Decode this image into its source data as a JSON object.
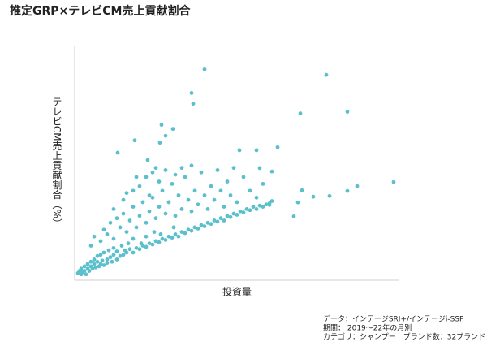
{
  "chart_data": {
    "type": "scatter",
    "title": "推定GRP×テレビCM売上貢献割合",
    "x_label": "投資量",
    "y_label": "テレビCM売上貢献割合（%）",
    "notes": [
      "データ：インテージSRI+/インテージi-SSP",
      "期間： 2019～22年の月別",
      "カテゴリ：シャンプー　ブランド数：32ブランド"
    ],
    "color": "#5bc0cc",
    "xlim": [
      0,
      100
    ],
    "ylim": [
      0,
      100
    ],
    "x": [
      40,
      77.5,
      36,
      36.5,
      69.5,
      84,
      26.75,
      30.25,
      28,
      26.25,
      13.25,
      18.5,
      22.5,
      50.75,
      56,
      62.5,
      98.25,
      87,
      84,
      78.5,
      73.5,
      70,
      67.5,
      68.75,
      60.75,
      57,
      60,
      1,
      1.5,
      2,
      2,
      2.5,
      3,
      3,
      3.5,
      4,
      4,
      4.5,
      5,
      5,
      5.5,
      6,
      6,
      6.5,
      7,
      7,
      7.5,
      8,
      8,
      8.5,
      9,
      9,
      10,
      10,
      10.5,
      11,
      11.5,
      12,
      12,
      13,
      13,
      14,
      14.5,
      15,
      15.5,
      16,
      16.5,
      17,
      18,
      18,
      19,
      20,
      20.5,
      21,
      22,
      22,
      23,
      24,
      24.5,
      25,
      26,
      26.5,
      27,
      28,
      29,
      30,
      30.5,
      31,
      32,
      33,
      34,
      35,
      36,
      37,
      38,
      39,
      40,
      41,
      42,
      43,
      44,
      45,
      46,
      47,
      48,
      49,
      50,
      51,
      52,
      53,
      54,
      55,
      56,
      57,
      58,
      59,
      60,
      60.75,
      5,
      6,
      8,
      9,
      10,
      11,
      12,
      13,
      14,
      15,
      16,
      17,
      18,
      19,
      20,
      21,
      22,
      23,
      24,
      25,
      26,
      27,
      28,
      29,
      30,
      31,
      32,
      33,
      34,
      35,
      36,
      37,
      38,
      39,
      40,
      41,
      42,
      43,
      44,
      45,
      46,
      47,
      48,
      49,
      50,
      52,
      54,
      56,
      58,
      20,
      22,
      25,
      18,
      15,
      23,
      28,
      33,
      36,
      31,
      26,
      12,
      16,
      19,
      24
    ],
    "values": [
      91,
      88.6,
      80.7,
      76,
      71.8,
      72.5,
      66.8,
      65,
      62,
      59,
      54.6,
      60,
      51.4,
      55.7,
      55.7,
      57,
      41.8,
      40,
      37.9,
      35.7,
      35.4,
      38.2,
      26.8,
      32.9,
      46.4,
      47.9,
      31.8,
      2,
      3,
      1.5,
      4,
      2.5,
      3,
      5,
      1.5,
      4,
      6,
      3,
      5,
      7,
      4,
      6,
      8,
      4.5,
      7,
      9.5,
      5,
      6,
      10,
      7.5,
      5.5,
      11,
      6.5,
      8,
      12,
      9,
      7,
      10,
      13,
      8,
      11.5,
      9.5,
      14,
      10,
      12,
      11,
      15,
      12.5,
      11,
      17,
      13,
      12.5,
      15,
      14,
      13.5,
      18,
      15,
      14.5,
      20,
      16,
      15.5,
      19,
      17,
      16.5,
      18,
      17.5,
      22,
      19,
      18,
      20,
      19.5,
      21,
      20.5,
      22,
      21.5,
      23,
      22.5,
      24,
      23.5,
      25,
      24.5,
      26,
      25,
      27,
      26.5,
      28,
      27.5,
      29,
      28.5,
      30,
      29.5,
      31,
      30,
      31.5,
      31,
      32,
      32.5,
      33.5,
      14,
      18,
      16,
      21,
      19,
      24,
      17,
      26,
      22,
      28,
      20,
      25,
      31,
      22,
      27,
      33,
      24,
      29,
      35,
      26,
      31,
      38,
      28,
      33,
      41,
      27,
      36,
      30,
      44,
      34,
      29,
      38,
      32,
      46,
      36,
      30,
      40,
      34,
      47,
      38,
      31,
      42,
      36,
      48,
      33,
      44,
      38,
      35,
      41,
      40,
      44,
      48,
      38,
      34,
      36,
      47,
      48,
      49,
      45,
      42,
      30,
      37,
      44,
      46
    ]
  }
}
